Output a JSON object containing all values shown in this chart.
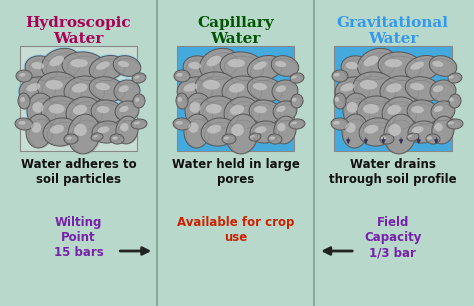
{
  "bg_color": "#b8d8cc",
  "panels": [
    {
      "title": "Hydroscopic\nWater",
      "title_color": "#aa0055",
      "has_water_bg": false,
      "water_bg_color": "#b8d8cc",
      "description": "Water adheres to\nsoil particles",
      "desc_color": "#111111",
      "extra_text": "Wilting\nPoint\n15 bars",
      "extra_color": "#7722aa",
      "arrow_dir": "right"
    },
    {
      "title": "Capillary\nWater",
      "title_color": "#005500",
      "has_water_bg": true,
      "water_bg_color": "#44aadd",
      "description": "Water held in large\npores",
      "desc_color": "#111111",
      "extra_text": "Available for crop\nuse",
      "extra_color": "#cc2200",
      "arrow_dir": "none"
    },
    {
      "title": "Gravitational\nWater",
      "title_color": "#3399ee",
      "has_water_bg": true,
      "water_bg_color": "#44aadd",
      "description": "Water drains\nthrough soil profile",
      "desc_color": "#111111",
      "extra_text": "Field\nCapacity\n1/3 bar",
      "extra_color": "#7722aa",
      "arrow_dir": "left"
    }
  ],
  "divider_color": "#88aa99",
  "arrow_color": "#222222"
}
